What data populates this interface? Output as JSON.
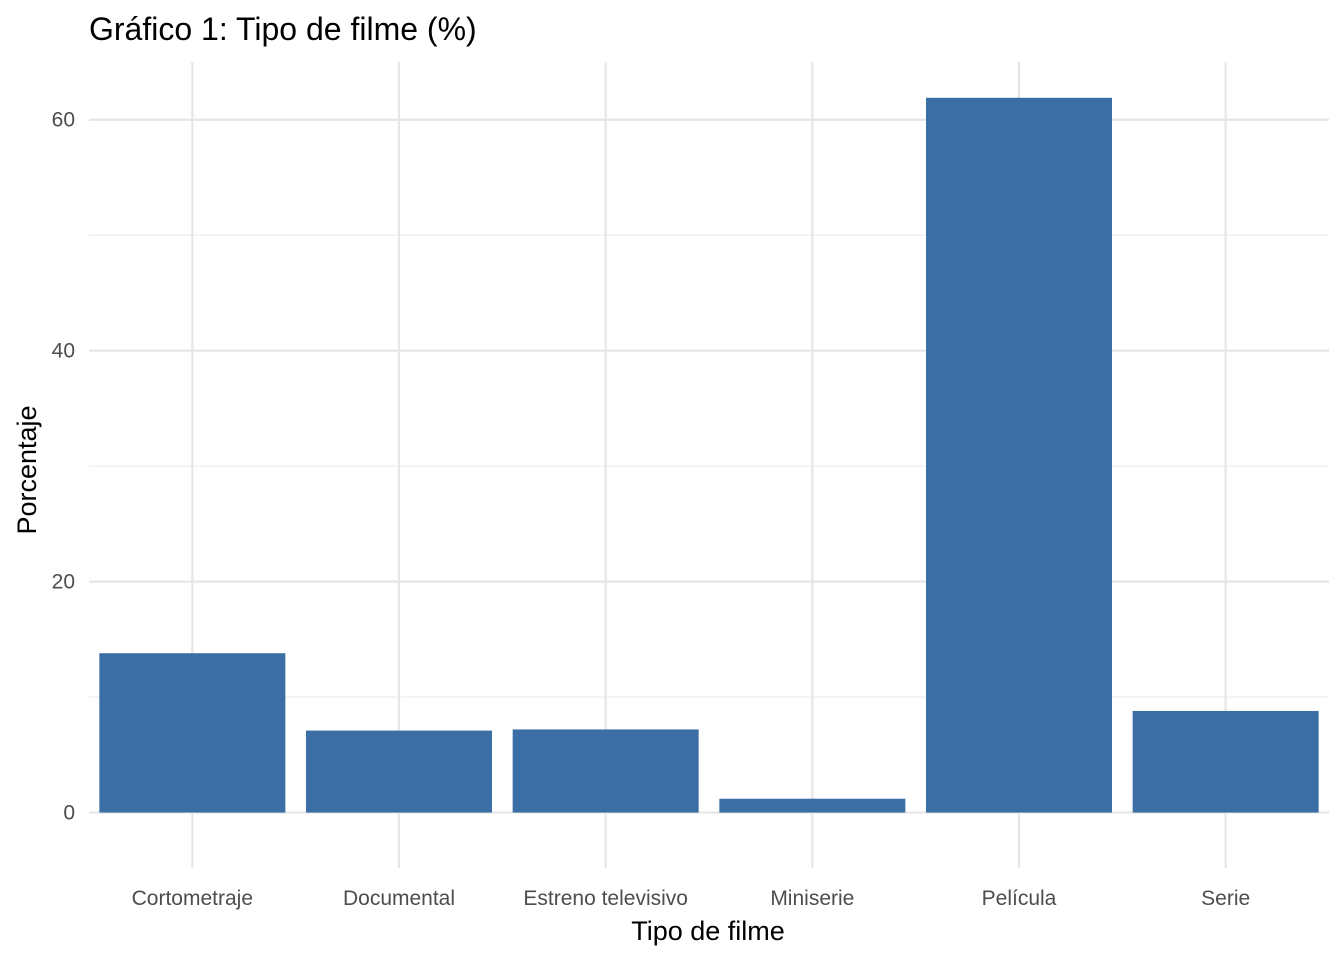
{
  "chart_data": {
    "type": "bar",
    "title": "Gráfico 1: Tipo de filme (%)",
    "xlabel": "Tipo de filme",
    "ylabel": "Porcentaje",
    "categories": [
      "Cortometraje",
      "Documental",
      "Estreno televisivo",
      "Miniserie",
      "Película",
      "Serie"
    ],
    "values": [
      13.8,
      7.1,
      7.2,
      1.2,
      61.9,
      8.8
    ],
    "ylim": [
      -4.8,
      65
    ],
    "yticks": [
      0,
      20,
      40,
      60
    ],
    "ytick_labels": [
      "0",
      "20",
      "40",
      "60"
    ],
    "grid": true,
    "legend": "none",
    "colors": {
      "bar": "#3a6ea5",
      "grid_major": "#e6e6e6",
      "grid_minor": "#efefef",
      "tick_text": "#4d4d4d"
    }
  }
}
